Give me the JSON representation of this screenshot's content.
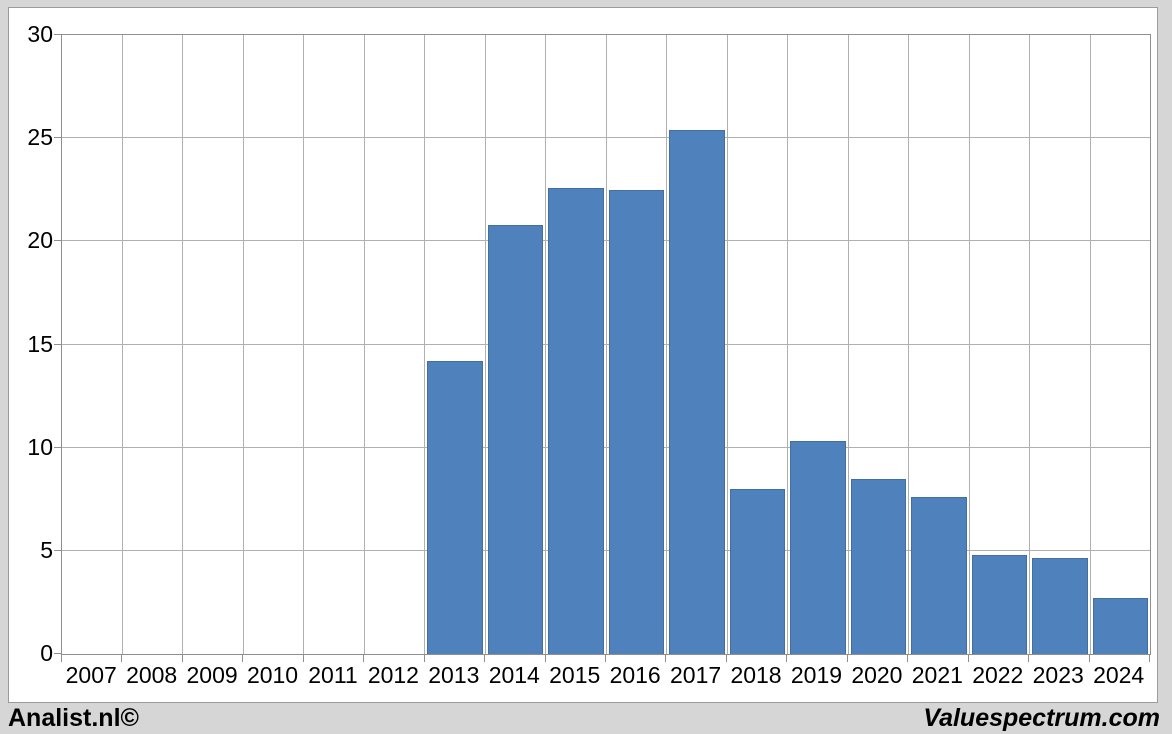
{
  "chart_data": {
    "type": "bar",
    "title": "",
    "xlabel": "",
    "ylabel": "",
    "categories": [
      "2007",
      "2008",
      "2009",
      "2010",
      "2011",
      "2012",
      "2013",
      "2014",
      "2015",
      "2016",
      "2017",
      "2018",
      "2019",
      "2020",
      "2021",
      "2022",
      "2023",
      "2024"
    ],
    "values": [
      0,
      0,
      0,
      0,
      0,
      0,
      14.2,
      20.8,
      22.6,
      22.5,
      25.4,
      8.0,
      10.3,
      8.5,
      7.6,
      4.8,
      4.65,
      2.7
    ],
    "ylim": [
      0,
      30
    ],
    "ytick_step": 5,
    "yticks": [
      0,
      5,
      10,
      15,
      20,
      25,
      30
    ],
    "grid": true,
    "legend": false,
    "bar_color": "#4f81bd"
  },
  "footer": {
    "left": "Analist.nl©",
    "right": "Valuespectrum.com"
  },
  "colors": {
    "canvas_bg": "#d6d6d6",
    "plot_bg": "#ffffff",
    "gridline": "#b0b0b0",
    "axis_line": "#8f8f8f",
    "bar": "#4f81bd",
    "text": "#000000"
  }
}
